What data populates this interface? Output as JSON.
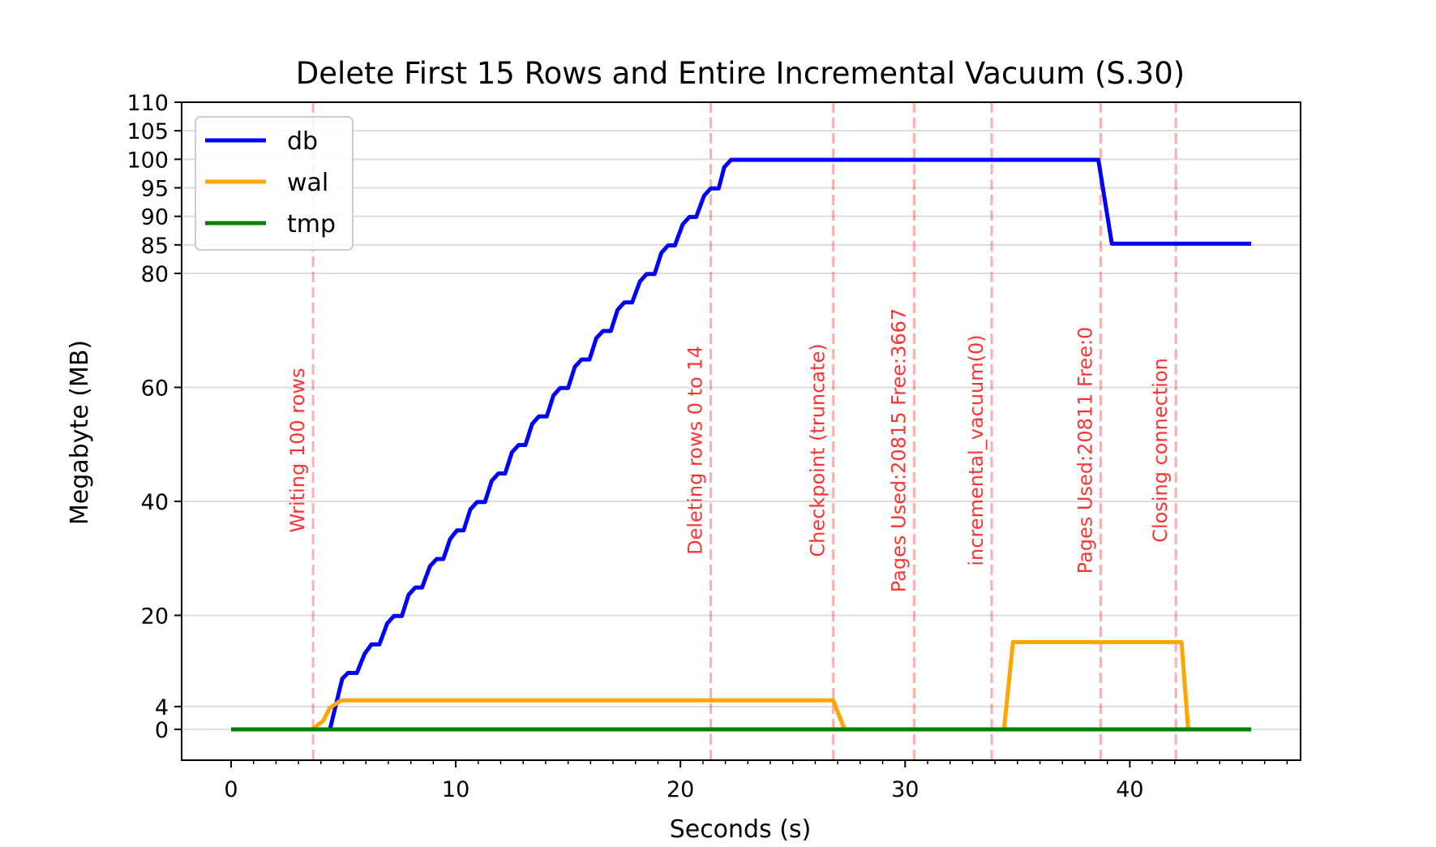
{
  "chart_data": {
    "type": "line",
    "title": "Delete First 15 Rows and Entire Incremental Vacuum (S.30)",
    "xlabel": "Seconds (s)",
    "ylabel": "Megabyte (MB)",
    "xlim": [
      -2.2,
      47.6
    ],
    "ylim": [
      -5,
      110
    ],
    "xticks": [
      0,
      10,
      20,
      30,
      40
    ],
    "xticks_minor": [
      1,
      2,
      3,
      4,
      5,
      6,
      7,
      8,
      9,
      11,
      12,
      13,
      14,
      15,
      16,
      17,
      18,
      19,
      21,
      22,
      23,
      24,
      25,
      26,
      27,
      28,
      29,
      31,
      32,
      33,
      34,
      35,
      36,
      37,
      38,
      39,
      41,
      42,
      43,
      44,
      45,
      46,
      47
    ],
    "yticks": [
      0,
      4,
      20,
      40,
      60,
      80,
      85,
      90,
      95,
      100,
      105,
      110
    ],
    "grid": true,
    "legend_placement": "top-left",
    "series": [
      {
        "name": "db",
        "color": "#0000ff",
        "points": [
          [
            0,
            0
          ],
          [
            4.4,
            0
          ],
          [
            4.95,
            8.9
          ],
          [
            5.2,
            9.9
          ],
          [
            5.6,
            9.9
          ],
          [
            5.95,
            13.3
          ],
          [
            6.25,
            14.9
          ],
          [
            6.6,
            14.9
          ],
          [
            6.95,
            18.6
          ],
          [
            7.25,
            19.9
          ],
          [
            7.6,
            19.9
          ],
          [
            7.9,
            23.6
          ],
          [
            8.2,
            24.9
          ],
          [
            8.5,
            24.9
          ],
          [
            8.85,
            28.6
          ],
          [
            9.15,
            29.9
          ],
          [
            9.45,
            29.9
          ],
          [
            9.75,
            33.4
          ],
          [
            10.05,
            34.9
          ],
          [
            10.35,
            34.9
          ],
          [
            10.65,
            38.6
          ],
          [
            10.95,
            39.9
          ],
          [
            11.3,
            39.9
          ],
          [
            11.6,
            43.6
          ],
          [
            11.9,
            44.9
          ],
          [
            12.2,
            44.9
          ],
          [
            12.5,
            48.6
          ],
          [
            12.8,
            49.9
          ],
          [
            13.1,
            49.9
          ],
          [
            13.4,
            53.6
          ],
          [
            13.7,
            54.9
          ],
          [
            14.05,
            54.9
          ],
          [
            14.35,
            58.6
          ],
          [
            14.65,
            59.9
          ],
          [
            15.0,
            59.9
          ],
          [
            15.3,
            63.6
          ],
          [
            15.6,
            64.9
          ],
          [
            15.95,
            64.9
          ],
          [
            16.25,
            68.6
          ],
          [
            16.55,
            69.9
          ],
          [
            16.9,
            69.9
          ],
          [
            17.2,
            73.6
          ],
          [
            17.5,
            74.9
          ],
          [
            17.85,
            74.9
          ],
          [
            18.2,
            78.6
          ],
          [
            18.5,
            79.9
          ],
          [
            18.85,
            79.9
          ],
          [
            19.15,
            83.6
          ],
          [
            19.45,
            84.9
          ],
          [
            19.75,
            84.9
          ],
          [
            20.1,
            88.6
          ],
          [
            20.4,
            89.9
          ],
          [
            20.7,
            89.9
          ],
          [
            21.05,
            93.6
          ],
          [
            21.35,
            94.9
          ],
          [
            21.7,
            94.9
          ],
          [
            21.95,
            98.6
          ],
          [
            22.25,
            99.9
          ],
          [
            38.6,
            99.9
          ],
          [
            39.2,
            85.2
          ],
          [
            45.4,
            85.2
          ]
        ]
      },
      {
        "name": "wal",
        "color": "#ffa500",
        "points": [
          [
            0,
            0
          ],
          [
            3.6,
            0
          ],
          [
            4.1,
            1.5
          ],
          [
            4.4,
            3.8
          ],
          [
            4.9,
            5.1
          ],
          [
            26.8,
            5.1
          ],
          [
            27.3,
            0
          ],
          [
            34.4,
            0
          ],
          [
            34.8,
            15.3
          ],
          [
            42.3,
            15.3
          ],
          [
            42.6,
            0
          ],
          [
            45.4,
            0
          ]
        ]
      },
      {
        "name": "tmp",
        "color": "#008000",
        "points": [
          [
            0,
            0
          ],
          [
            45.4,
            0
          ]
        ]
      }
    ],
    "events": [
      {
        "x": 3.65,
        "label": "Writing 100 rows"
      },
      {
        "x": 21.35,
        "label": "Deleting rows 0 to 14"
      },
      {
        "x": 26.8,
        "label": "Checkpoint (truncate)"
      },
      {
        "x": 30.4,
        "label": "Pages Used:20815 Free:3667"
      },
      {
        "x": 33.85,
        "label": "incremental_vacuum(0)"
      },
      {
        "x": 38.7,
        "label": "Pages Used:20811 Free:0"
      },
      {
        "x": 42.05,
        "label": "Closing connection"
      }
    ],
    "event_color": "#ff0000"
  }
}
